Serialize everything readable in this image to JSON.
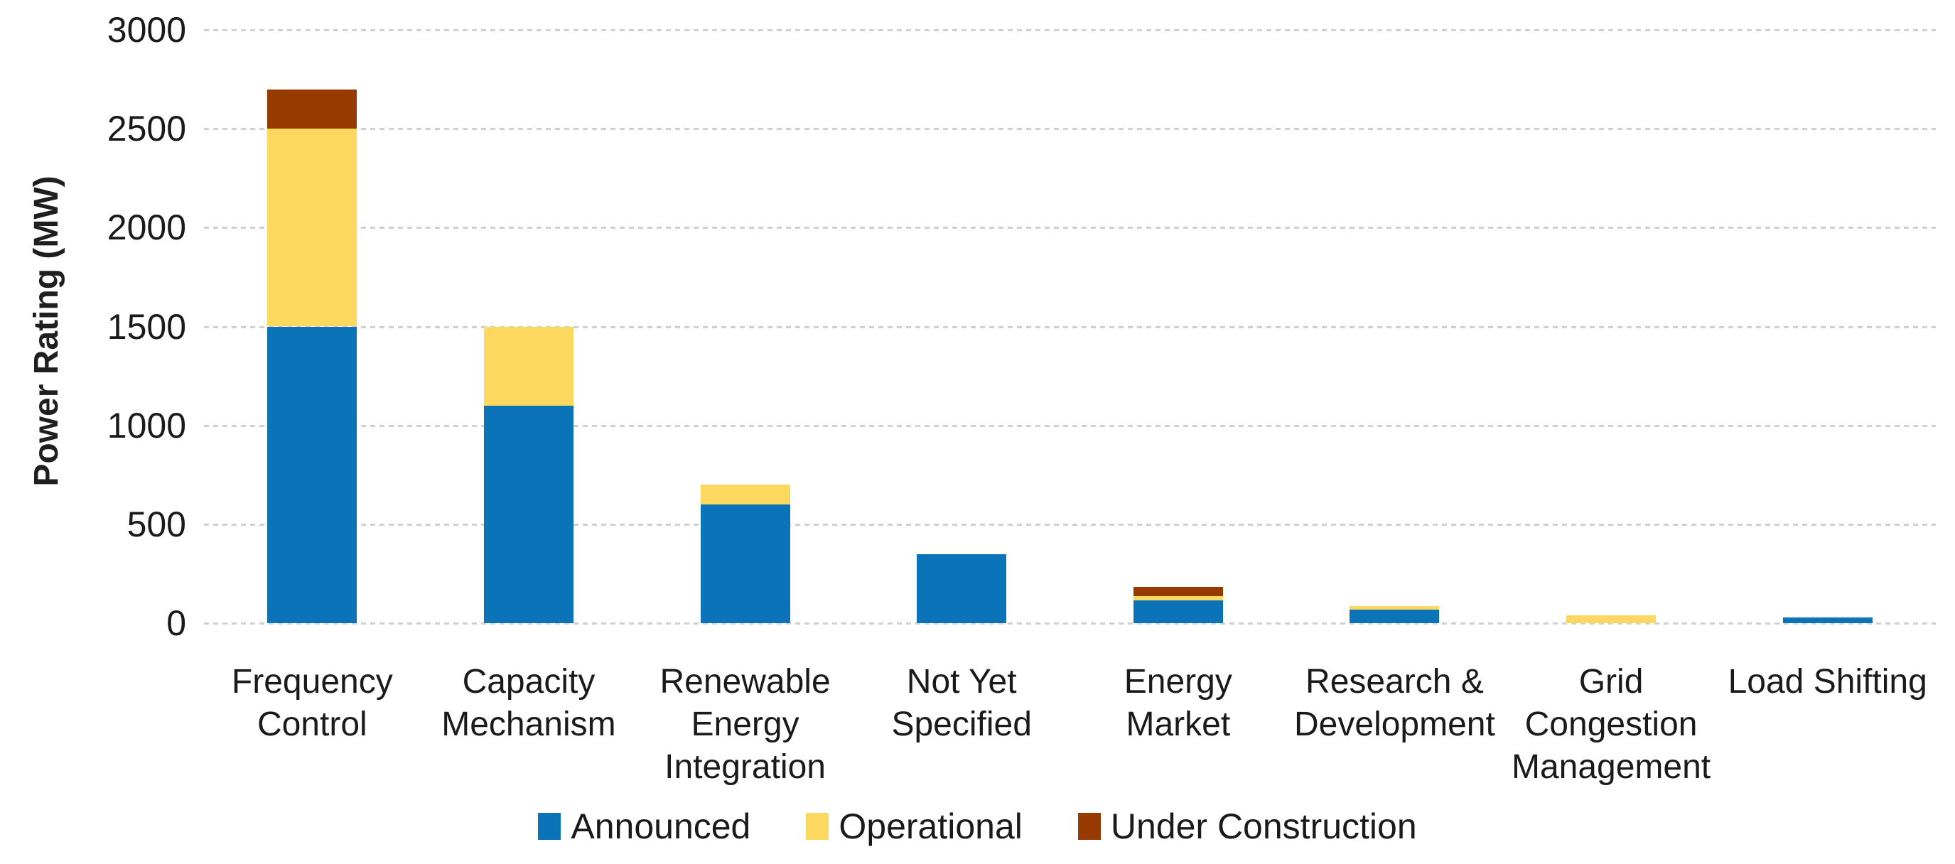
{
  "chart_data": {
    "type": "bar",
    "stacked": true,
    "title": "",
    "xlabel": "",
    "ylabel": "Power Rating (MW)",
    "ylim": [
      0,
      3000
    ],
    "ytick_step": 500,
    "yticks": [
      0,
      500,
      1000,
      1500,
      2000,
      2500,
      3000
    ],
    "grid": "horizontal-dashed",
    "legend_position": "bottom",
    "categories": [
      "Frequency Control",
      "Capacity Mechanism",
      "Renewable Energy Integration",
      "Not Yet Specified",
      "Energy Market",
      "Research & Development",
      "Grid Congestion Management",
      "Load Shifting"
    ],
    "series": [
      {
        "name": "Announced",
        "color": "#0b74b9",
        "values": [
          1500,
          1100,
          600,
          350,
          115,
          70,
          0,
          30
        ]
      },
      {
        "name": "Operational",
        "color": "#fdd85e",
        "values": [
          1000,
          400,
          100,
          0,
          20,
          15,
          40,
          0
        ]
      },
      {
        "name": "Under Construction",
        "color": "#963a00",
        "values": [
          200,
          0,
          0,
          0,
          50,
          0,
          0,
          0
        ]
      }
    ],
    "totals": [
      2700,
      1500,
      700,
      350,
      185,
      85,
      40,
      30
    ]
  },
  "colors": {
    "background": "#ffffff",
    "gridline": "#d0d0d0",
    "text": "#1a1a1a"
  }
}
